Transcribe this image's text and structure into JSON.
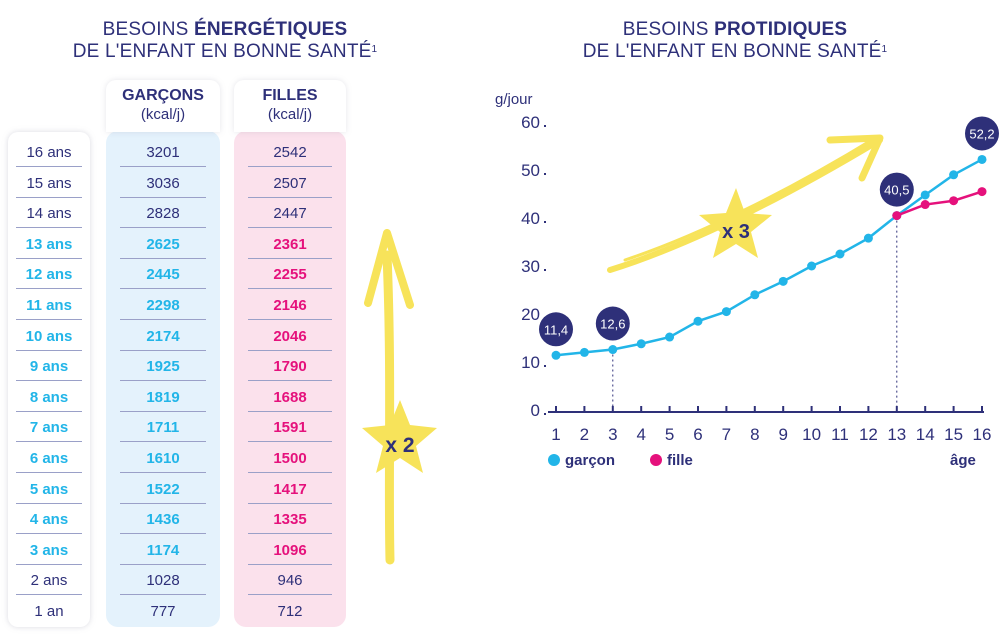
{
  "left_table": {
    "title_plain": "BESOINS ",
    "title_bold": "ÉNERGÉTIQUES",
    "title_line2": "DE L'ENFANT EN BONNE SANTÉ",
    "title_sup": "1",
    "boys_header": "GARÇONS",
    "boys_unit": "(kcal/j)",
    "girls_header": "FILLES",
    "girls_unit": "(kcal/j)",
    "arrow_label": "x 2",
    "rows": [
      {
        "age": "16 ans",
        "boys": "3201",
        "girls": "2542",
        "highlight": false
      },
      {
        "age": "15 ans",
        "boys": "3036",
        "girls": "2507",
        "highlight": false
      },
      {
        "age": "14 ans",
        "boys": "2828",
        "girls": "2447",
        "highlight": false
      },
      {
        "age": "13 ans",
        "boys": "2625",
        "girls": "2361",
        "highlight": true
      },
      {
        "age": "12 ans",
        "boys": "2445",
        "girls": "2255",
        "highlight": true
      },
      {
        "age": "11 ans",
        "boys": "2298",
        "girls": "2146",
        "highlight": true
      },
      {
        "age": "10 ans",
        "boys": "2174",
        "girls": "2046",
        "highlight": true
      },
      {
        "age": "9 ans",
        "boys": "1925",
        "girls": "1790",
        "highlight": true
      },
      {
        "age": "8 ans",
        "boys": "1819",
        "girls": "1688",
        "highlight": true
      },
      {
        "age": "7 ans",
        "boys": "1711",
        "girls": "1591",
        "highlight": true
      },
      {
        "age": "6 ans",
        "boys": "1610",
        "girls": "1500",
        "highlight": true
      },
      {
        "age": "5 ans",
        "boys": "1522",
        "girls": "1417",
        "highlight": true
      },
      {
        "age": "4 ans",
        "boys": "1436",
        "girls": "1335",
        "highlight": true
      },
      {
        "age": "3 ans",
        "boys": "1174",
        "girls": "1096",
        "highlight": true
      },
      {
        "age": "2 ans",
        "boys": "1028",
        "girls": "946",
        "highlight": false
      },
      {
        "age": "1 an",
        "boys": "777",
        "girls": "712",
        "highlight": false
      }
    ]
  },
  "chart_data": {
    "type": "line",
    "title_plain": "BESOINS ",
    "title_bold": "PROTIDIQUES",
    "title_line2": "DE L'ENFANT EN BONNE SANTÉ",
    "title_sup": "1",
    "ylabel": "g/jour",
    "xlabel": "âge",
    "ylim": [
      0,
      60
    ],
    "yticks": [
      "0",
      "10",
      "20",
      "30",
      "40",
      "50",
      "60"
    ],
    "x": [
      1,
      2,
      3,
      4,
      5,
      6,
      7,
      8,
      9,
      10,
      11,
      12,
      13,
      14,
      15,
      16
    ],
    "series": [
      {
        "name": "garçon",
        "color": "#22b5e8",
        "x": [
          1,
          2,
          3,
          4,
          5,
          6,
          7,
          8,
          9,
          10,
          11,
          12,
          13,
          14,
          15,
          16
        ],
        "values": [
          11.4,
          12,
          12.6,
          13.8,
          15.2,
          18.5,
          20.5,
          24,
          26.8,
          30,
          32.5,
          35.8,
          40.5,
          44.8,
          49,
          52.2
        ]
      },
      {
        "name": "fille",
        "color": "#e5117c",
        "x": [
          13,
          14,
          15,
          16
        ],
        "values": [
          40.5,
          42.8,
          43.6,
          45.5
        ]
      }
    ],
    "annotations": [
      {
        "x": 1,
        "y": 11.4,
        "label": "11,4"
      },
      {
        "x": 3,
        "y": 12.6,
        "label": "12,6"
      },
      {
        "x": 13,
        "y": 40.5,
        "label": "40,5"
      },
      {
        "x": 16,
        "y": 52.2,
        "label": "52,2"
      }
    ],
    "arrow_label": "x 3",
    "legend": [
      {
        "label": "garçon",
        "color": "#22b5e8"
      },
      {
        "label": "fille",
        "color": "#e5117c"
      }
    ],
    "colors": {
      "navy": "#2e3079",
      "star": "#f7e35a"
    }
  }
}
